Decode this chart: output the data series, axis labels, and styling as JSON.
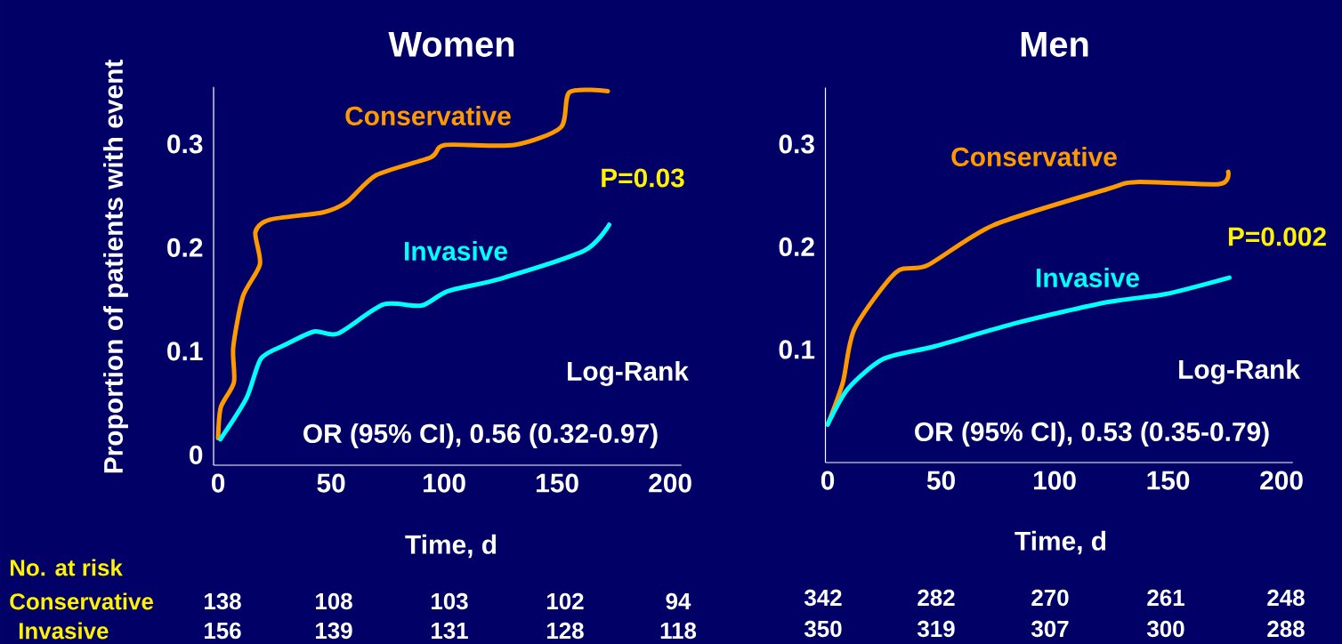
{
  "chart_data": [
    {
      "type": "line",
      "title": "Women",
      "xlabel": "Time, d",
      "ylabel": "Proportion of patients with event",
      "xlim": [
        -2,
        205
      ],
      "ylim": [
        -0.01,
        0.355
      ],
      "xticks": [
        0,
        50,
        100,
        150,
        200
      ],
      "yticks": [
        0,
        0.1,
        0.2,
        0.3
      ],
      "series": [
        {
          "name": "Conservative",
          "color": "#ff9900",
          "x": [
            0,
            1.2,
            7,
            6.7,
            11,
            18.5,
            16.5,
            23,
            46.5,
            57,
            70,
            94,
            100.4,
            131,
            151.6,
            155.5,
            172.4
          ],
          "values": [
            0.016,
            0.046,
            0.07,
            0.104,
            0.153,
            0.184,
            0.215,
            0.227,
            0.234,
            0.244,
            0.27,
            0.287,
            0.299,
            0.299,
            0.316,
            0.35,
            0.351
          ]
        },
        {
          "name": "Invasive",
          "color": "#00ffff",
          "x": [
            1,
            12.6,
            19,
            29.5,
            42.5,
            53,
            73,
            90,
            101.6,
            125,
            162,
            173
          ],
          "values": [
            0.015,
            0.055,
            0.093,
            0.106,
            0.119,
            0.117,
            0.145,
            0.144,
            0.158,
            0.17,
            0.197,
            0.222
          ]
        }
      ],
      "annotations": [
        "P=0.03",
        "Log-Rank",
        "OR (95% CI), 0.56 (0.32-0.97)",
        "No. at risk",
        "Conservative",
        "Invasive",
        "138",
        "108",
        "103",
        "102",
        "94",
        "156",
        "139",
        "131",
        "128",
        "118"
      ]
    },
    {
      "type": "line",
      "title": "Men",
      "xlabel": "Time, d",
      "xlim": [
        -1,
        205
      ],
      "ylim": [
        -0.01,
        0.355
      ],
      "xticks": [
        0,
        50,
        100,
        150,
        200
      ],
      "yticks": [
        0.1,
        0.2,
        0.3
      ],
      "series": [
        {
          "name": "Conservative",
          "color": "#ff9900",
          "x": [
            0,
            6.7,
            11.8,
            30,
            44,
            73,
            123,
            136,
            172.5,
            176.5
          ],
          "values": [
            0.027,
            0.068,
            0.12,
            0.175,
            0.182,
            0.221,
            0.256,
            0.263,
            0.261,
            0.273
          ]
        },
        {
          "name": "Invasive",
          "color": "#00ffff",
          "x": [
            0,
            9,
            24.7,
            47,
            83.5,
            123,
            149,
            177
          ],
          "values": [
            0.027,
            0.062,
            0.091,
            0.103,
            0.126,
            0.146,
            0.154,
            0.17
          ]
        }
      ],
      "annotations": [
        "P=0.002",
        "Log-Rank",
        "OR (95% CI), 0.53 (0.35-0.79)",
        "342",
        "282",
        "270",
        "261",
        "248",
        "350",
        "319",
        "307",
        "300",
        "288"
      ]
    }
  ]
}
